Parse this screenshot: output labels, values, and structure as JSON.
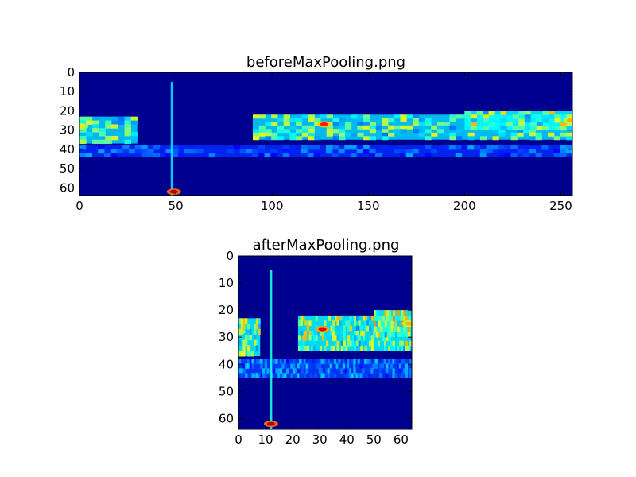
{
  "chart_data": [
    {
      "type": "heatmap",
      "title": "beforeMaxPooling.png",
      "xlabel": "",
      "ylabel": "",
      "xlim": [
        0,
        256
      ],
      "ylim": [
        64,
        0
      ],
      "xticks": [
        0,
        50,
        100,
        150,
        200,
        250
      ],
      "yticks": [
        0,
        10,
        20,
        30,
        40,
        50,
        60
      ],
      "x_tick_labels": [
        "0",
        "50",
        "100",
        "150",
        "200",
        "250"
      ],
      "y_tick_labels": [
        "0",
        "10",
        "20",
        "30",
        "40",
        "50",
        "60"
      ],
      "colormap": "jet",
      "grid": false,
      "background_color": "#00008f",
      "features": [
        {
          "kind": "band",
          "x0": 0,
          "x1": 30,
          "y0": 23,
          "y1": 37,
          "intensity": 0.45
        },
        {
          "kind": "band",
          "x0": 90,
          "x1": 256,
          "y0": 22,
          "y1": 35,
          "intensity": 0.45
        },
        {
          "kind": "band",
          "x0": 0,
          "x1": 256,
          "y0": 38,
          "y1": 44,
          "intensity": 0.22
        },
        {
          "kind": "band",
          "x0": 200,
          "x1": 256,
          "y0": 20,
          "y1": 30,
          "intensity": 0.5
        },
        {
          "kind": "vertical_line",
          "x": 48,
          "y0": 5,
          "y1": 64,
          "intensity": 0.35
        },
        {
          "kind": "hotspot",
          "x": 49,
          "y": 62,
          "intensity": 0.95
        },
        {
          "kind": "hotspot",
          "x": 127,
          "y": 27,
          "intensity": 0.85
        },
        {
          "kind": "hotspot",
          "x": 1,
          "y": 28,
          "intensity": 0.65
        },
        {
          "kind": "hotspot",
          "x": 255,
          "y": 25,
          "intensity": 0.7
        }
      ]
    },
    {
      "type": "heatmap",
      "title": "afterMaxPooling.png",
      "xlabel": "",
      "ylabel": "",
      "xlim": [
        0,
        64
      ],
      "ylim": [
        64,
        0
      ],
      "xticks": [
        0,
        10,
        20,
        30,
        40,
        50,
        60
      ],
      "yticks": [
        0,
        10,
        20,
        30,
        40,
        50,
        60
      ],
      "x_tick_labels": [
        "0",
        "10",
        "20",
        "30",
        "40",
        "50",
        "60"
      ],
      "y_tick_labels": [
        "0",
        "10",
        "20",
        "30",
        "40",
        "50",
        "60"
      ],
      "colormap": "jet",
      "grid": false,
      "background_color": "#00008f",
      "features": [
        {
          "kind": "band",
          "x0": 0,
          "x1": 8,
          "y0": 23,
          "y1": 37,
          "intensity": 0.5
        },
        {
          "kind": "band",
          "x0": 22,
          "x1": 64,
          "y0": 22,
          "y1": 35,
          "intensity": 0.5
        },
        {
          "kind": "band",
          "x0": 0,
          "x1": 64,
          "y0": 38,
          "y1": 45,
          "intensity": 0.25
        },
        {
          "kind": "band",
          "x0": 50,
          "x1": 64,
          "y0": 20,
          "y1": 30,
          "intensity": 0.55
        },
        {
          "kind": "vertical_line",
          "x": 12,
          "y0": 5,
          "y1": 64,
          "intensity": 0.4
        },
        {
          "kind": "hotspot",
          "x": 12,
          "y": 62,
          "intensity": 0.95
        },
        {
          "kind": "hotspot",
          "x": 31,
          "y": 27,
          "intensity": 0.9
        },
        {
          "kind": "hotspot",
          "x": 0,
          "y": 28,
          "intensity": 0.65
        },
        {
          "kind": "hotspot",
          "x": 63,
          "y": 25,
          "intensity": 0.7
        }
      ]
    }
  ]
}
